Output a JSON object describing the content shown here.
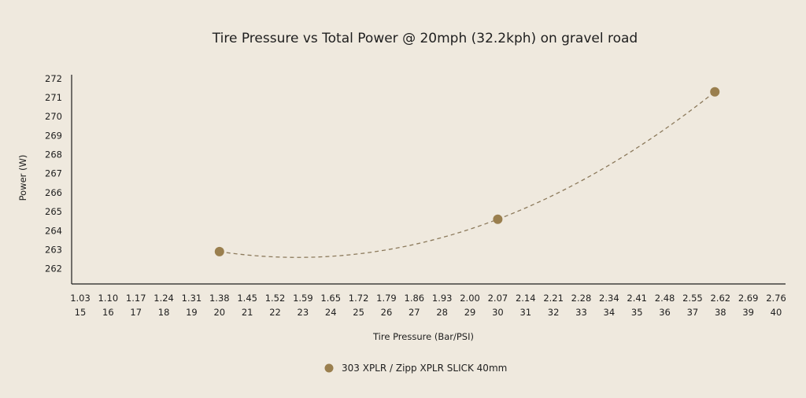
{
  "chart_data": {
    "type": "scatter",
    "title": "Tire Pressure vs Total Power @ 20mph (32.2kph) on gravel road",
    "xlabel": "Tire Pressure (Bar/PSI)",
    "ylabel": "Power (W)",
    "x_ticks_bar": [
      "1.03",
      "1.10",
      "1.17",
      "1.24",
      "1.31",
      "1.38",
      "1.45",
      "1.52",
      "1.59",
      "1.65",
      "1.72",
      "1.79",
      "1.86",
      "1.93",
      "2.00",
      "2.07",
      "2.14",
      "2.21",
      "2.28",
      "2.34",
      "2.41",
      "2.48",
      "2.55",
      "2.62",
      "2.69",
      "2.76"
    ],
    "x_ticks_psi": [
      "15",
      "16",
      "17",
      "18",
      "19",
      "20",
      "21",
      "22",
      "23",
      "24",
      "25",
      "26",
      "27",
      "28",
      "29",
      "30",
      "31",
      "32",
      "33",
      "34",
      "35",
      "36",
      "37",
      "38",
      "39",
      "40"
    ],
    "xlim": [
      15,
      40
    ],
    "ylim": [
      261.2,
      272.2
    ],
    "y_ticks": [
      262,
      263,
      264,
      265,
      266,
      267,
      268,
      269,
      270,
      271,
      272
    ],
    "trendline": "polynomial, dashed",
    "series": [
      {
        "name": "303 XPLR / Zipp XPLR SLICK 40mm",
        "color": "#9a7f4e",
        "points": [
          {
            "psi": 20,
            "power": 262.9
          },
          {
            "psi": 30,
            "power": 264.6
          },
          {
            "psi": 37.8,
            "power": 271.3
          }
        ]
      }
    ],
    "legend_position": "bottom-center"
  }
}
